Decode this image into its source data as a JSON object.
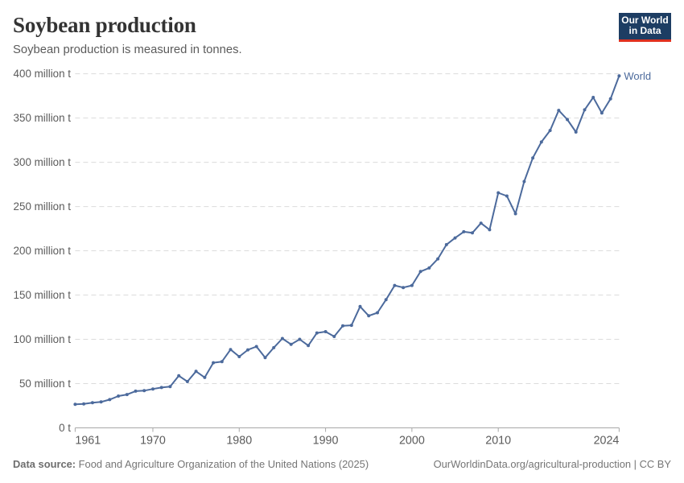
{
  "header": {
    "title": "Soybean production",
    "subtitle": "Soybean production is measured in tonnes."
  },
  "logo": {
    "line1": "Our World",
    "line2": "in Data",
    "background_color": "#1d3d63",
    "bar_color": "#e0301f"
  },
  "footer": {
    "source_label": "Data source:",
    "source_text": " Food and Agriculture Organization of the United Nations (2025)",
    "right_text": "OurWorldinData.org/agricultural-production | CC BY"
  },
  "chart_data": {
    "type": "line",
    "title": "Soybean production",
    "subtitle": "Soybean production is measured in tonnes.",
    "values_unit": "million tonnes",
    "x": [
      1961,
      1962,
      1963,
      1964,
      1965,
      1966,
      1967,
      1968,
      1969,
      1970,
      1971,
      1972,
      1973,
      1974,
      1975,
      1976,
      1977,
      1978,
      1979,
      1980,
      1981,
      1982,
      1983,
      1984,
      1985,
      1986,
      1987,
      1988,
      1989,
      1990,
      1991,
      1992,
      1993,
      1994,
      1995,
      1996,
      1997,
      1998,
      1999,
      2000,
      2001,
      2002,
      2003,
      2004,
      2005,
      2006,
      2007,
      2008,
      2009,
      2010,
      2011,
      2012,
      2013,
      2014,
      2015,
      2016,
      2017,
      2018,
      2019,
      2020,
      2021,
      2022,
      2023,
      2024
    ],
    "series": [
      {
        "name": "World",
        "color": "#4C6A9C",
        "values": [
          26.6,
          27.0,
          28.4,
          29.3,
          31.9,
          35.9,
          37.6,
          41.5,
          42.0,
          43.9,
          45.6,
          46.6,
          58.8,
          52.3,
          63.8,
          56.9,
          73.6,
          74.8,
          88.5,
          80.5,
          88.1,
          91.8,
          79.3,
          90.6,
          100.9,
          94.3,
          100.0,
          92.9,
          107.2,
          108.7,
          103.2,
          115.2,
          115.8,
          137.0,
          126.6,
          130.0,
          144.8,
          160.9,
          158.5,
          160.9,
          176.6,
          180.6,
          190.9,
          207.0,
          214.5,
          221.5,
          220.2,
          231.2,
          223.8,
          265.5,
          261.9,
          241.9,
          278.2,
          304.9,
          322.9,
          335.9,
          358.6,
          348.3,
          334.2,
          359.3,
          373.3,
          355.6,
          371.6,
          397.5
        ]
      }
    ],
    "xlim": [
      1961,
      2024
    ],
    "ylim": [
      0,
      400
    ],
    "x_ticks": [
      1961,
      1970,
      1980,
      1990,
      2000,
      2010,
      2024
    ],
    "y_ticks": [
      {
        "value": 0,
        "label": "0 t"
      },
      {
        "value": 50,
        "label": "50 million t"
      },
      {
        "value": 100,
        "label": "100 million t"
      },
      {
        "value": 150,
        "label": "150 million t"
      },
      {
        "value": 200,
        "label": "200 million t"
      },
      {
        "value": 250,
        "label": "250 million t"
      },
      {
        "value": 300,
        "label": "300 million t"
      },
      {
        "value": 350,
        "label": "350 million t"
      },
      {
        "value": 400,
        "label": "400 million t"
      }
    ],
    "grid": "horizontal dashed",
    "legend_position": "end-of-line",
    "end_label": "World"
  }
}
